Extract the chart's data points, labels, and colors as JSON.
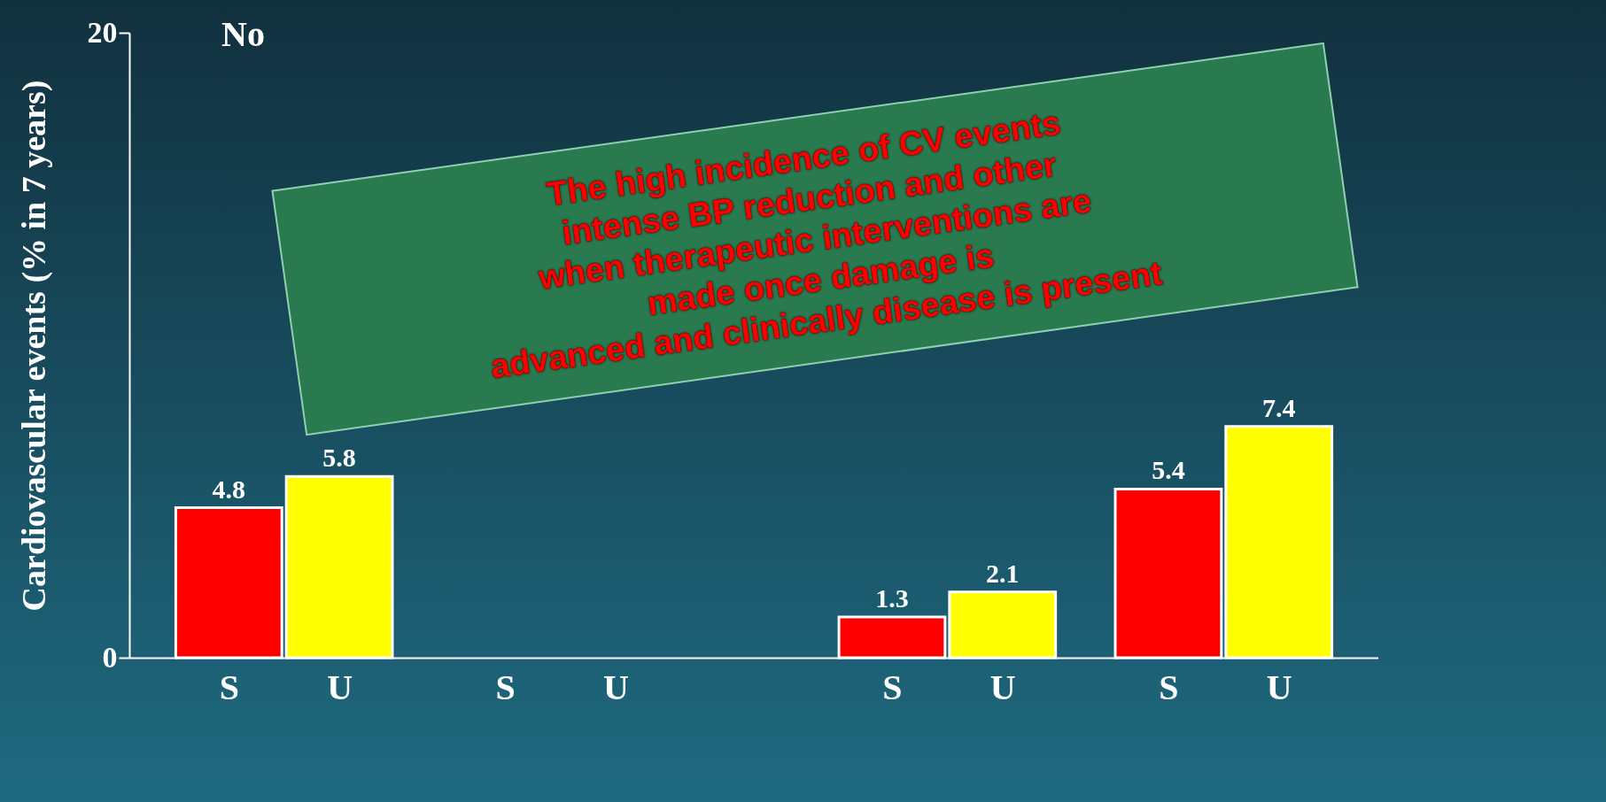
{
  "chart_data": {
    "type": "bar",
    "title": "No",
    "ylabel": "Cardiovascular events (% in 7 years)",
    "categories": [
      "S",
      "U",
      "S",
      "U",
      "S",
      "U",
      "S",
      "U"
    ],
    "values": [
      4.8,
      5.8,
      null,
      null,
      1.3,
      2.1,
      5.4,
      7.4
    ],
    "colors": [
      "#ff0000",
      "#ffff00",
      "#ff0000",
      "#ffff00",
      "#ff0000",
      "#ffff00",
      "#ff0000",
      "#ffff00"
    ],
    "value_labels": [
      "4.8",
      "5.8",
      null,
      null,
      "1.3",
      "2.1",
      "5.4",
      "7.4"
    ],
    "ylim": [
      0,
      20
    ],
    "yticks": [
      0,
      20
    ],
    "grid": false,
    "annotations": [
      "The high incidence of CV events\nintense BP reduction and other\nwhen therapeutic interventions are\nmade once damage is\nadvanced and clinically disease is present"
    ]
  }
}
